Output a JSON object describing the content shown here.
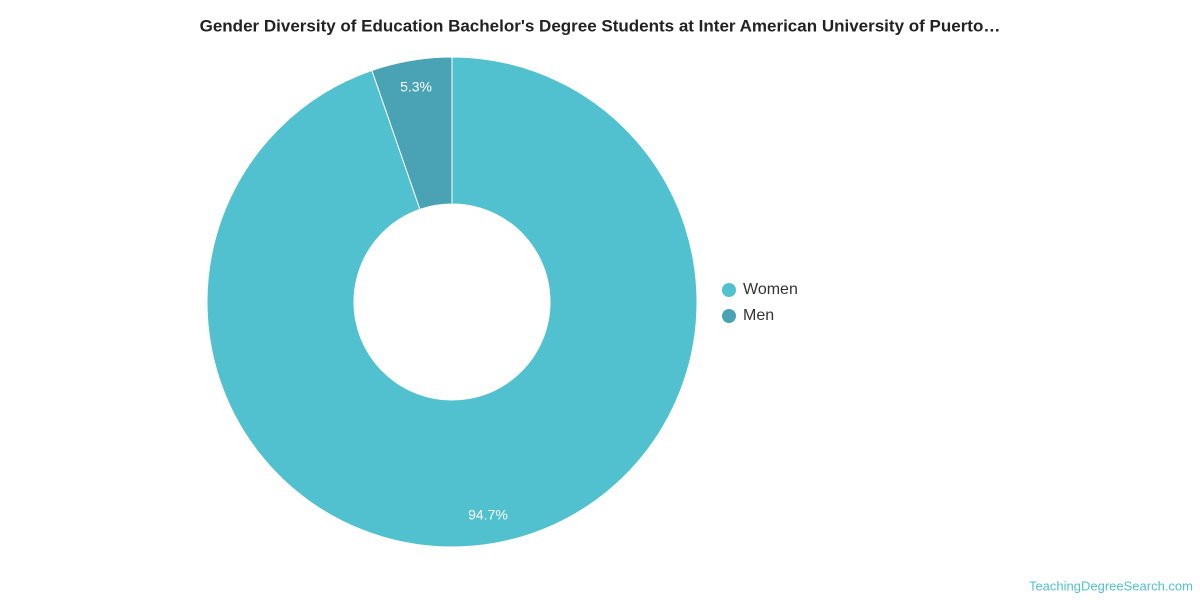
{
  "chart_data": {
    "type": "pie",
    "title": "Gender Diversity of Education Bachelor's Degree Students at Inter American University of Puerto…",
    "categories": [
      "Women",
      "Men"
    ],
    "values": [
      94.7,
      5.3
    ],
    "value_labels": [
      "94.7%",
      "5.3%"
    ],
    "colors": [
      "#52c1cf",
      "#4aa3b5"
    ],
    "legend": "right",
    "source": "TeachingDegreeSearch.com"
  }
}
